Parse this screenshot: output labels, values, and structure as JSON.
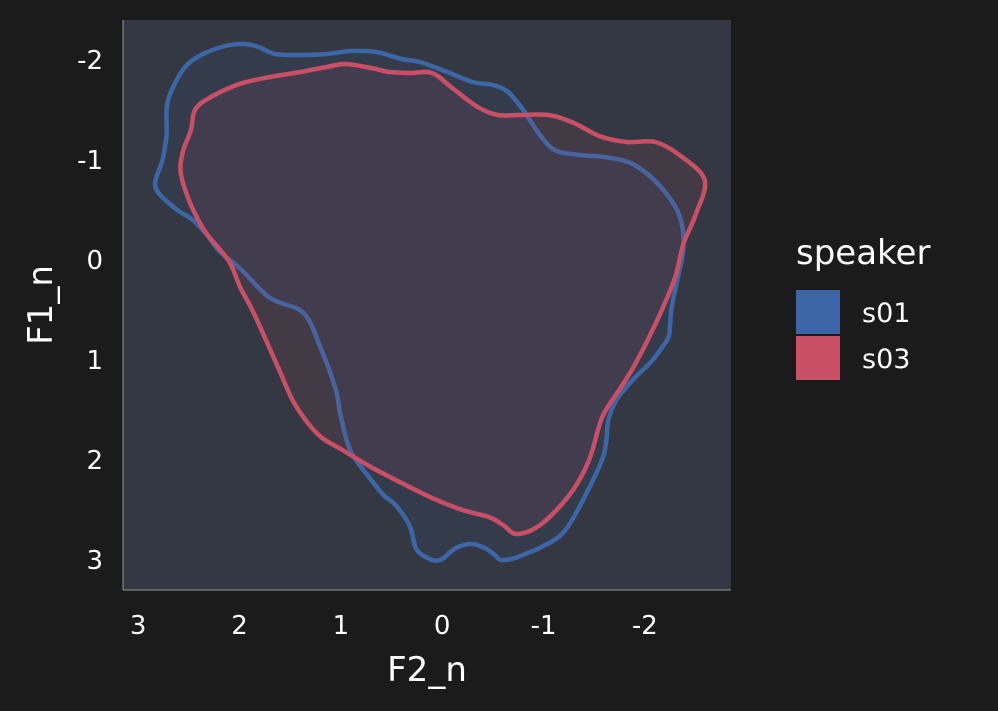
{
  "chart_data": {
    "type": "contour",
    "xlabel": "F2_n",
    "ylabel": "F1_n",
    "x_reversed": true,
    "y_reversed": true,
    "xlim": [
      3.15,
      -2.85
    ],
    "ylim": [
      -2.4,
      3.3
    ],
    "x_ticks": [
      {
        "value": 3,
        "label": "3"
      },
      {
        "value": 2,
        "label": "2"
      },
      {
        "value": 1,
        "label": "1"
      },
      {
        "value": 0,
        "label": "0"
      },
      {
        "value": -1,
        "label": "-1"
      },
      {
        "value": -2,
        "label": "-2"
      }
    ],
    "y_ticks": [
      {
        "value": -2,
        "label": "-2"
      },
      {
        "value": -1,
        "label": "-1"
      },
      {
        "value": 0,
        "label": "0"
      },
      {
        "value": 1,
        "label": "1"
      },
      {
        "value": 2,
        "label": "2"
      },
      {
        "value": 3,
        "label": "3"
      }
    ],
    "legend": {
      "title": "speaker",
      "position": "right"
    },
    "background_color": "#343842",
    "series": [
      {
        "name": "s01",
        "color": "#3c66a5",
        "points": [
          [
            2.71,
            -1.58
          ],
          [
            2.56,
            -1.9
          ],
          [
            2.38,
            -2.05
          ],
          [
            2.14,
            -2.14
          ],
          [
            1.96,
            -2.16
          ],
          [
            1.81,
            -2.13
          ],
          [
            1.65,
            -2.06
          ],
          [
            1.4,
            -2.05
          ],
          [
            1.14,
            -2.06
          ],
          [
            0.9,
            -2.09
          ],
          [
            0.65,
            -2.08
          ],
          [
            0.4,
            -2.01
          ],
          [
            0.22,
            -1.98
          ],
          [
            -0.05,
            -1.88
          ],
          [
            -0.3,
            -1.78
          ],
          [
            -0.5,
            -1.75
          ],
          [
            -0.65,
            -1.68
          ],
          [
            -0.8,
            -1.5
          ],
          [
            -0.95,
            -1.27
          ],
          [
            -1.11,
            -1.1
          ],
          [
            -1.36,
            -1.05
          ],
          [
            -1.6,
            -1.03
          ],
          [
            -1.88,
            -0.96
          ],
          [
            -2.14,
            -0.75
          ],
          [
            -2.34,
            -0.45
          ],
          [
            -2.38,
            -0.12
          ],
          [
            -2.32,
            0.2
          ],
          [
            -2.26,
            0.5
          ],
          [
            -2.24,
            0.75
          ],
          [
            -2.18,
            0.86
          ],
          [
            -2.06,
            1.02
          ],
          [
            -1.88,
            1.2
          ],
          [
            -1.72,
            1.4
          ],
          [
            -1.64,
            1.6
          ],
          [
            -1.62,
            1.8
          ],
          [
            -1.58,
            1.99
          ],
          [
            -1.42,
            2.34
          ],
          [
            -1.2,
            2.72
          ],
          [
            -0.96,
            2.88
          ],
          [
            -0.84,
            2.93
          ],
          [
            -0.72,
            2.98
          ],
          [
            -0.58,
            3.0
          ],
          [
            -0.52,
            2.95
          ],
          [
            -0.42,
            2.88
          ],
          [
            -0.3,
            2.84
          ],
          [
            -0.18,
            2.86
          ],
          [
            -0.08,
            2.92
          ],
          [
            0.0,
            2.99
          ],
          [
            0.1,
            3.0
          ],
          [
            0.25,
            2.9
          ],
          [
            0.3,
            2.72
          ],
          [
            0.34,
            2.62
          ],
          [
            0.46,
            2.45
          ],
          [
            0.58,
            2.35
          ],
          [
            0.7,
            2.2
          ],
          [
            0.9,
            1.92
          ],
          [
            1.0,
            1.57
          ],
          [
            1.05,
            1.3
          ],
          [
            1.2,
            0.88
          ],
          [
            1.37,
            0.53
          ],
          [
            1.7,
            0.38
          ],
          [
            1.98,
            0.1
          ],
          [
            2.2,
            -0.09
          ],
          [
            2.32,
            -0.25
          ],
          [
            2.46,
            -0.4
          ],
          [
            2.64,
            -0.52
          ],
          [
            2.83,
            -0.73
          ],
          [
            2.76,
            -1.0
          ],
          [
            2.72,
            -1.25
          ]
        ]
      },
      {
        "name": "s03",
        "color": "#c94f66",
        "points": [
          [
            2.44,
            -1.5
          ],
          [
            2.3,
            -1.62
          ],
          [
            2.0,
            -1.76
          ],
          [
            1.7,
            -1.83
          ],
          [
            1.4,
            -1.88
          ],
          [
            1.14,
            -1.93
          ],
          [
            0.95,
            -1.96
          ],
          [
            0.7,
            -1.92
          ],
          [
            0.52,
            -1.88
          ],
          [
            0.32,
            -1.87
          ],
          [
            0.1,
            -1.87
          ],
          [
            -0.1,
            -1.72
          ],
          [
            -0.35,
            -1.53
          ],
          [
            -0.55,
            -1.45
          ],
          [
            -0.75,
            -1.45
          ],
          [
            -1.05,
            -1.45
          ],
          [
            -1.3,
            -1.37
          ],
          [
            -1.55,
            -1.24
          ],
          [
            -1.82,
            -1.18
          ],
          [
            -2.1,
            -1.18
          ],
          [
            -2.34,
            -1.05
          ],
          [
            -2.59,
            -0.8
          ],
          [
            -2.5,
            -0.45
          ],
          [
            -2.38,
            -0.16
          ],
          [
            -2.29,
            0.2
          ],
          [
            -2.1,
            0.65
          ],
          [
            -1.9,
            1.05
          ],
          [
            -1.76,
            1.28
          ],
          [
            -1.58,
            1.57
          ],
          [
            -1.45,
            2.0
          ],
          [
            -1.27,
            2.33
          ],
          [
            -0.98,
            2.64
          ],
          [
            -0.74,
            2.74
          ],
          [
            -0.6,
            2.65
          ],
          [
            -0.46,
            2.57
          ],
          [
            -0.2,
            2.5
          ],
          [
            0.1,
            2.38
          ],
          [
            0.42,
            2.22
          ],
          [
            0.72,
            2.06
          ],
          [
            1.0,
            1.89
          ],
          [
            1.22,
            1.75
          ],
          [
            1.45,
            1.45
          ],
          [
            1.6,
            1.12
          ],
          [
            1.85,
            0.55
          ],
          [
            1.99,
            0.28
          ],
          [
            2.1,
            0.02
          ],
          [
            2.3,
            -0.23
          ],
          [
            2.38,
            -0.35
          ],
          [
            2.5,
            -0.6
          ],
          [
            2.58,
            -0.87
          ],
          [
            2.56,
            -1.08
          ],
          [
            2.48,
            -1.3
          ]
        ]
      }
    ]
  }
}
